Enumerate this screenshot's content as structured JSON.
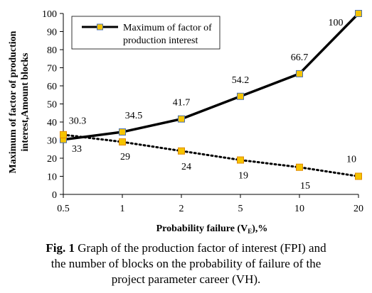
{
  "chart_data": {
    "type": "line",
    "categories": [
      "0.5",
      "1",
      "2",
      "5",
      "10",
      "20"
    ],
    "series": [
      {
        "name": "Maximum of factor of production interest",
        "values": [
          30.3,
          34.5,
          41.7,
          54.2,
          66.7,
          100
        ],
        "labels": [
          "30.3",
          "34.5",
          "41.7",
          "54.2",
          "66.7",
          "100"
        ],
        "style": "solid",
        "color": "#000000",
        "marker_color": "#f5c400"
      },
      {
        "name": "",
        "values": [
          33,
          29,
          24,
          19,
          15,
          10
        ],
        "labels": [
          "33",
          "29",
          "24",
          "19",
          "15",
          "10"
        ],
        "style": "dotted",
        "color": "#000000",
        "marker_color": "#f5c400"
      }
    ],
    "xlabel": "Probability failure (V",
    "xlabel_sub": "E",
    "xlabel_suffix": "),%",
    "ylabel_line1": "Maximum of factor of production",
    "ylabel_line2": "interest,Amount blocks",
    "ylim": [
      0,
      100
    ],
    "yticks": [
      "0",
      "10",
      "20",
      "30",
      "40",
      "50",
      "60",
      "70",
      "80",
      "90",
      "100"
    ],
    "grid": false,
    "legend_position": "top-left"
  },
  "caption": {
    "prefix": "Fig. 1",
    "line1": " Graph of the production factor of interest (FPI) and",
    "line2": "the number of blocks on the probability of failure of the",
    "line3": "project parameter career (VH)."
  }
}
